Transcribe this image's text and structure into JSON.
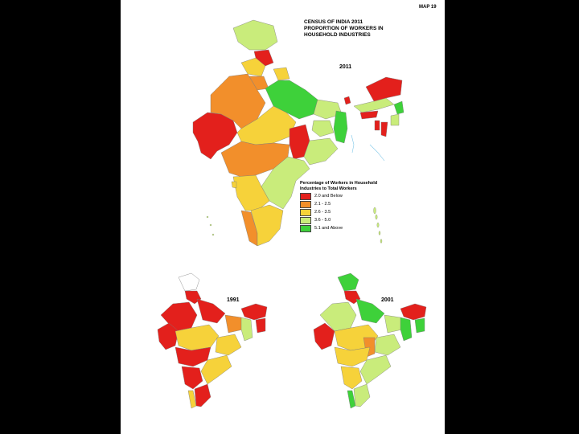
{
  "map_label": "MAP 19",
  "title_lines": [
    "CENSUS OF INDIA 2011",
    "PROPORTION OF WORKERS IN",
    "HOUSEHOLD INDUSTRIES"
  ],
  "years": {
    "main": "2011",
    "left": "1991",
    "right": "2001"
  },
  "legend": {
    "title": "Percentage of Workers in Household Industries to Total Workers",
    "items": [
      {
        "label": "2.0 and Below",
        "color": "#e3201c"
      },
      {
        "label": "2.1 - 2.5",
        "color": "#f28f2b"
      },
      {
        "label": "2.6 - 3.5",
        "color": "#f6d23a"
      },
      {
        "label": "3.6 - 5.0",
        "color": "#c9ec7b"
      },
      {
        "label": "5.1 and Above",
        "color": "#3ed13a"
      }
    ]
  },
  "colors": {
    "red": "#e3201c",
    "orange": "#f28f2b",
    "yellow": "#f6d23a",
    "lightgreen": "#c9ec7b",
    "green": "#3ed13a",
    "sea": "#7fc7e8"
  }
}
